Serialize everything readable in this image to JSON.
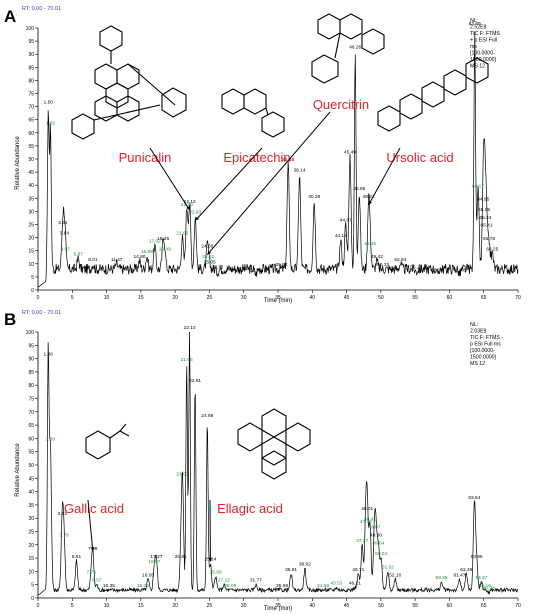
{
  "colors": {
    "trace": "#000000",
    "annotation": "#e8222a",
    "peak_label": "#000000",
    "green_label": "#1f8a3a"
  },
  "chart_data": [
    {
      "panel_label": "A",
      "type": "line",
      "rt_range": "RT: 0.00 - 70.01",
      "info_lines": [
        "NL:",
        "2.52E9",
        "TIC F: FTMS",
        "+ p ESI Full",
        "ms",
        "[100.0000-",
        "1500.0000]",
        "MS 12"
      ],
      "xlabel": "Time (min)",
      "ylabel": "Relative Abundance",
      "xlim": [
        0,
        70
      ],
      "ylim": [
        0,
        100
      ],
      "xticks": [
        0,
        5,
        10,
        15,
        20,
        25,
        30,
        35,
        40,
        45,
        50,
        55,
        60,
        65,
        70
      ],
      "yticks": [
        0,
        5,
        10,
        15,
        20,
        25,
        30,
        35,
        40,
        45,
        50,
        55,
        60,
        65,
        70,
        75,
        80,
        85,
        90,
        95,
        100
      ],
      "grid": false,
      "baseline": 8,
      "peaks": [
        {
          "rt": 1.5,
          "h": 70,
          "label": "1.50"
        },
        {
          "rt": 1.82,
          "h": 62,
          "label": "1.82",
          "green": true
        },
        {
          "rt": 3.61,
          "h": 24,
          "label": "3.61"
        },
        {
          "rt": 3.84,
          "h": 20,
          "label": "3.84"
        },
        {
          "rt": 3.97,
          "h": 14,
          "label": "3.97",
          "green": true
        },
        {
          "rt": 5.87,
          "h": 12,
          "label": "5.87",
          "green": true
        },
        {
          "rt": 8.01,
          "h": 10,
          "label": "8.01"
        },
        {
          "rt": 11.47,
          "h": 10,
          "label": "11.47"
        },
        {
          "rt": 14.8,
          "h": 11,
          "label": "14.80"
        },
        {
          "rt": 15.88,
          "h": 13,
          "label": "15.88",
          "green": true
        },
        {
          "rt": 17.02,
          "h": 17,
          "label": "17.02",
          "green": true
        },
        {
          "rt": 18.25,
          "h": 18,
          "label": "18.25"
        },
        {
          "rt": 18.49,
          "h": 14,
          "label": "18.49",
          "green": true
        },
        {
          "rt": 21.05,
          "h": 20,
          "label": "21.05",
          "green": true
        },
        {
          "rt": 21.7,
          "h": 31,
          "label": "21.70",
          "green": true
        },
        {
          "rt": 22.12,
          "h": 32,
          "label": "22.12"
        },
        {
          "rt": 22.93,
          "h": 28,
          "label": "22.93",
          "green": true
        },
        {
          "rt": 24.69,
          "h": 15,
          "label": "24.69"
        },
        {
          "rt": 24.81,
          "h": 11,
          "label": "24.81",
          "green": true
        },
        {
          "rt": 25.05,
          "h": 9,
          "label": "25.05"
        },
        {
          "rt": 26.16,
          "h": 7,
          "label": "26.16"
        },
        {
          "rt": 31.76,
          "h": 6,
          "label": "31.76"
        },
        {
          "rt": 35.52,
          "h": 8,
          "label": "35.52"
        },
        {
          "rt": 36.48,
          "h": 48,
          "label": "36.48"
        },
        {
          "rt": 38.14,
          "h": 44,
          "label": "38.14"
        },
        {
          "rt": 40.28,
          "h": 34,
          "label": "40.28"
        },
        {
          "rt": 44.15,
          "h": 19,
          "label": "44.15"
        },
        {
          "rt": 44.87,
          "h": 25,
          "label": "44.87"
        },
        {
          "rt": 45.49,
          "h": 51,
          "label": "45.49"
        },
        {
          "rt": 46.26,
          "h": 91,
          "label": "46.26"
        },
        {
          "rt": 46.86,
          "h": 37,
          "label": "46.86"
        },
        {
          "rt": 48.22,
          "h": 34,
          "label": "48.22"
        },
        {
          "rt": 48.45,
          "h": 16,
          "label": "48.45",
          "green": true
        },
        {
          "rt": 49.42,
          "h": 11,
          "label": "49.42"
        },
        {
          "rt": 50.33,
          "h": 8,
          "label": "50.33"
        },
        {
          "rt": 52.84,
          "h": 10,
          "label": "52.84"
        },
        {
          "rt": 55.15,
          "h": 7,
          "label": "55.15"
        },
        {
          "rt": 58.2,
          "h": 6,
          "label": "58.20"
        },
        {
          "rt": 61.48,
          "h": 6,
          "label": "61.48"
        },
        {
          "rt": 63.69,
          "h": 100,
          "label": "63.69"
        },
        {
          "rt": 64.17,
          "h": 38,
          "label": "64.17",
          "green": true
        },
        {
          "rt": 64.95,
          "h": 33,
          "label": "64.95"
        },
        {
          "rt": 65.05,
          "h": 29,
          "label": "65.05"
        },
        {
          "rt": 65.24,
          "h": 26,
          "label": "65.24"
        },
        {
          "rt": 65.41,
          "h": 23,
          "label": "65.41"
        },
        {
          "rt": 65.78,
          "h": 18,
          "label": "65.78"
        },
        {
          "rt": 66.25,
          "h": 14,
          "label": "66.25"
        }
      ],
      "annotations": [
        {
          "text": "Punicalin",
          "arrow_to_rt": 22.12
        },
        {
          "text": "Epicatechin",
          "arrow_to_rt": 22.93
        },
        {
          "text": "Quercitrin",
          "arrow_to_rt": 24.69
        },
        {
          "text": "Ursolic acid",
          "arrow_to_rt": 48.22
        }
      ]
    },
    {
      "panel_label": "B",
      "type": "line",
      "rt_range": "RT: 0.00 - 70.01",
      "info_lines": [
        "NL:",
        "2.03E9",
        "TIC F: FTMS -",
        "p ESI Full ms",
        "[100.0000-",
        "1500.0000]",
        "MS 12"
      ],
      "xlabel": "Time (min)",
      "ylabel": "Relative Abundance",
      "xlim": [
        0,
        70
      ],
      "ylim": [
        0,
        100
      ],
      "xticks": [
        0,
        5,
        10,
        15,
        20,
        25,
        30,
        35,
        40,
        45,
        50,
        55,
        60,
        65,
        70
      ],
      "yticks": [
        0,
        5,
        10,
        15,
        20,
        25,
        30,
        35,
        40,
        45,
        50,
        55,
        60,
        65,
        70,
        75,
        80,
        85,
        90,
        95,
        100
      ],
      "grid": false,
      "baseline": 3,
      "peaks": [
        {
          "rt": 1.48,
          "h": 90,
          "label": "1.48"
        },
        {
          "rt": 1.8,
          "h": 58,
          "label": "1.80",
          "green": true
        },
        {
          "rt": 3.53,
          "h": 30,
          "label": "3.53"
        },
        {
          "rt": 3.79,
          "h": 22,
          "label": "3.79",
          "green": true
        },
        {
          "rt": 5.61,
          "h": 14,
          "label": "5.61"
        },
        {
          "rt": 7.76,
          "h": 8,
          "label": "7.76",
          "green": true
        },
        {
          "rt": 7.99,
          "h": 17,
          "label": "7.99"
        },
        {
          "rt": 8.57,
          "h": 5,
          "label": "8.57",
          "green": true
        },
        {
          "rt": 10.35,
          "h": 3,
          "label": "10.35"
        },
        {
          "rt": 15.29,
          "h": 3,
          "label": "15.29",
          "green": true
        },
        {
          "rt": 16.05,
          "h": 7,
          "label": "16.05"
        },
        {
          "rt": 16.97,
          "h": 12,
          "label": "16.97",
          "green": true
        },
        {
          "rt": 17.27,
          "h": 14,
          "label": "17.27"
        },
        {
          "rt": 20.81,
          "h": 14,
          "label": "20.81"
        },
        {
          "rt": 21.07,
          "h": 45,
          "label": "21.07",
          "green": true
        },
        {
          "rt": 21.68,
          "h": 88,
          "label": "21.68",
          "green": true
        },
        {
          "rt": 22.1,
          "h": 100,
          "label": "22.10"
        },
        {
          "rt": 22.91,
          "h": 80,
          "label": "22.91"
        },
        {
          "rt": 24.69,
          "h": 67,
          "label": "24.69"
        },
        {
          "rt": 25.14,
          "h": 13,
          "label": "25.14"
        },
        {
          "rt": 25.9,
          "h": 8,
          "label": "25.90",
          "green": true
        },
        {
          "rt": 27.12,
          "h": 5,
          "label": "27.12",
          "green": true
        },
        {
          "rt": 28.05,
          "h": 3,
          "label": "28.05",
          "green": true
        },
        {
          "rt": 31.77,
          "h": 5,
          "label": "31.77"
        },
        {
          "rt": 35.59,
          "h": 3,
          "label": "35.59"
        },
        {
          "rt": 36.91,
          "h": 9,
          "label": "36.91"
        },
        {
          "rt": 38.92,
          "h": 11,
          "label": "38.92"
        },
        {
          "rt": 41.58,
          "h": 3,
          "label": "41.58",
          "green": true
        },
        {
          "rt": 43.53,
          "h": 4,
          "label": "43.53",
          "green": true
        },
        {
          "rt": 46.21,
          "h": 4,
          "label": "46.21"
        },
        {
          "rt": 46.71,
          "h": 9,
          "label": "46.71"
        },
        {
          "rt": 47.27,
          "h": 20,
          "label": "47.27",
          "green": true
        },
        {
          "rt": 47.79,
          "h": 27,
          "label": "47.79",
          "green": true
        },
        {
          "rt": 48.01,
          "h": 32,
          "label": "48.01"
        },
        {
          "rt": 48.41,
          "h": 28,
          "label": "48.41",
          "green": true
        },
        {
          "rt": 49.07,
          "h": 25,
          "label": "49.07",
          "green": true
        },
        {
          "rt": 49.3,
          "h": 22,
          "label": "49.30"
        },
        {
          "rt": 49.64,
          "h": 19,
          "label": "49.64",
          "green": true
        },
        {
          "rt": 50.04,
          "h": 15,
          "label": "50.04",
          "green": true
        },
        {
          "rt": 51.02,
          "h": 10,
          "label": "51.02",
          "green": true
        },
        {
          "rt": 52.1,
          "h": 7,
          "label": "52.10"
        },
        {
          "rt": 58.85,
          "h": 6,
          "label": "58.85",
          "green": true
        },
        {
          "rt": 61.47,
          "h": 7,
          "label": "61.47"
        },
        {
          "rt": 62.46,
          "h": 9,
          "label": "62.46"
        },
        {
          "rt": 63.64,
          "h": 36,
          "label": "63.64"
        },
        {
          "rt": 63.96,
          "h": 14,
          "label": "63.96"
        },
        {
          "rt": 64.67,
          "h": 6,
          "label": "64.67",
          "green": true
        },
        {
          "rt": 65.16,
          "h": 3,
          "label": "65.16",
          "green": true
        },
        {
          "rt": 65.73,
          "h": 2,
          "label": "65.73",
          "green": true
        }
      ],
      "annotations": [
        {
          "text": "Gallic acid",
          "arrow_to_rt": 7.99
        },
        {
          "text": "Ellagic acid",
          "arrow_to_rt": 25.14
        }
      ]
    }
  ]
}
